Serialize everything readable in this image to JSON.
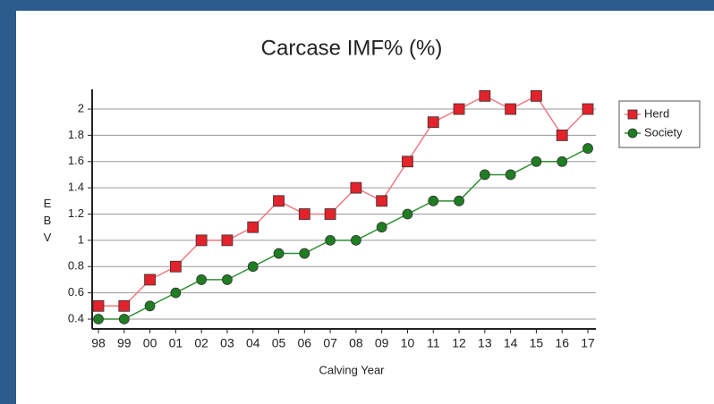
{
  "chart_data": {
    "type": "line",
    "title": "Carcase IMF% (%)",
    "x_label": "Calving Year",
    "y_label": "EBV",
    "categories": [
      "98",
      "99",
      "00",
      "01",
      "02",
      "03",
      "04",
      "05",
      "06",
      "07",
      "08",
      "09",
      "10",
      "11",
      "12",
      "13",
      "14",
      "15",
      "16",
      "17"
    ],
    "series": [
      {
        "name": "Herd",
        "color": "#e3222b",
        "line_color": "#f07a80",
        "marker": "square",
        "values": [
          0.5,
          0.5,
          0.7,
          0.8,
          1.0,
          1.0,
          1.1,
          1.3,
          1.2,
          1.2,
          1.4,
          1.3,
          1.6,
          1.9,
          2.0,
          2.1,
          2.0,
          2.1,
          1.8,
          2.0
        ]
      },
      {
        "name": "Society",
        "color": "#1f7d22",
        "line_color": "#2f8f33",
        "marker": "circle",
        "values": [
          0.4,
          0.4,
          0.5,
          0.6,
          0.7,
          0.7,
          0.8,
          0.9,
          0.9,
          1.0,
          1.0,
          1.1,
          1.2,
          1.3,
          1.3,
          1.5,
          1.5,
          1.6,
          1.6,
          1.7
        ]
      }
    ],
    "ylim": [
      0.325,
      2.15
    ],
    "yticks": [
      0.4,
      0.6,
      0.8,
      1,
      1.2,
      1.4,
      1.6,
      1.8,
      2
    ],
    "grid": true,
    "legend": "right"
  }
}
